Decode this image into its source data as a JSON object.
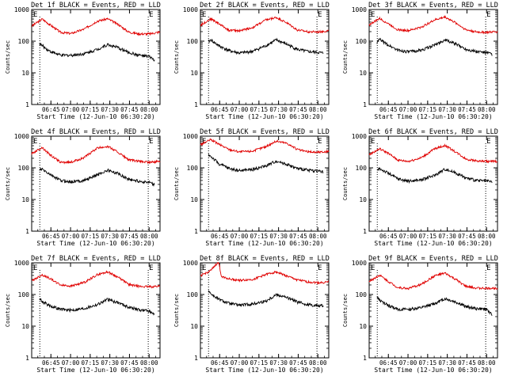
{
  "chart_data": {
    "type": "line",
    "layout": "3x3 grid of panels",
    "y_scale": "log",
    "ylim": [
      1,
      1000
    ],
    "y_ticks": [
      1,
      10,
      100,
      1000
    ],
    "ylabel": "Counts/sec",
    "xlabel": "Start Time (12-Jun-10 06:30:20)",
    "x_range_minutes_from_start": [
      0,
      98
    ],
    "x_ticks": [
      "06:45",
      "07:00",
      "07:15",
      "07:30",
      "07:45",
      "08:00"
    ],
    "x_tick_minutes": [
      14.67,
      29.67,
      44.67,
      59.67,
      74.67,
      89.67
    ],
    "vlines_minutes": [
      6.2,
      89.0
    ],
    "corner_markers": [
      "E",
      "E"
    ],
    "colors": {
      "events": "#000000",
      "lld": "#e00000"
    },
    "panels": [
      {
        "title": "Det 1f BLACK = Events, RED = LLD",
        "series": [
          {
            "name": "LLD",
            "x": [
              0,
              8,
              14,
              22,
              30,
              40,
              50,
              58,
              66,
              74,
              82,
              90,
              98
            ],
            "values": [
              300,
              500,
              330,
              190,
              175,
              240,
              430,
              510,
              340,
              195,
              170,
              170,
              195
            ]
          },
          {
            "name": "Events",
            "x": [
              6,
              8,
              14,
              22,
              30,
              40,
              50,
              58,
              66,
              74,
              82,
              90,
              94
            ],
            "values": [
              85,
              72,
              48,
              36,
              36,
              40,
              55,
              78,
              62,
              44,
              36,
              32,
              25
            ]
          }
        ]
      },
      {
        "title": "Det 2f BLACK = Events, RED = LLD",
        "series": [
          {
            "name": "LLD",
            "x": [
              0,
              8,
              14,
              22,
              30,
              40,
              50,
              58,
              66,
              74,
              82,
              90,
              98
            ],
            "values": [
              320,
              510,
              360,
              220,
              215,
              270,
              470,
              560,
              380,
              225,
              200,
              195,
              215
            ]
          },
          {
            "name": "Events",
            "x": [
              6,
              8,
              14,
              22,
              30,
              40,
              50,
              58,
              66,
              74,
              82,
              90,
              94
            ],
            "values": [
              95,
              110,
              72,
              50,
              42,
              48,
              72,
              110,
              80,
              55,
              47,
              44,
              42
            ]
          }
        ]
      },
      {
        "title": "Det 3f BLACK = Events, RED = LLD",
        "series": [
          {
            "name": "LLD",
            "x": [
              0,
              8,
              14,
              22,
              30,
              40,
              50,
              58,
              66,
              74,
              82,
              90,
              98
            ],
            "values": [
              330,
              520,
              370,
              230,
              215,
              280,
              470,
              580,
              380,
              230,
              195,
              190,
              200
            ]
          },
          {
            "name": "Events",
            "x": [
              6,
              8,
              14,
              22,
              30,
              40,
              50,
              58,
              66,
              74,
              82,
              90,
              94
            ],
            "values": [
              90,
              115,
              78,
              52,
              46,
              52,
              76,
              110,
              82,
              56,
              47,
              44,
              38
            ]
          }
        ]
      },
      {
        "title": "Det 4f BLACK = Events, RED = LLD",
        "series": [
          {
            "name": "LLD",
            "x": [
              0,
              8,
              14,
              22,
              30,
              40,
              50,
              58,
              66,
              74,
              82,
              90,
              98
            ],
            "values": [
              280,
              440,
              260,
              150,
              150,
              210,
              420,
              480,
              310,
              180,
              160,
              150,
              160
            ]
          },
          {
            "name": "Events",
            "x": [
              6,
              8,
              14,
              22,
              30,
              40,
              50,
              58,
              66,
              74,
              82,
              90,
              94
            ],
            "values": [
              85,
              90,
              62,
              40,
              36,
              40,
              60,
              84,
              66,
              44,
              38,
              34,
              28
            ]
          }
        ]
      },
      {
        "title": "Det 5f BLACK = Events, RED = LLD",
        "series": [
          {
            "name": "LLD",
            "x": [
              0,
              8,
              14,
              22,
              30,
              40,
              50,
              58,
              66,
              74,
              82,
              90,
              98
            ],
            "values": [
              540,
              780,
              560,
              380,
              320,
              340,
              470,
              700,
              600,
              380,
              320,
              310,
              330
            ]
          },
          {
            "name": "Events",
            "x": [
              6,
              8,
              14,
              22,
              30,
              40,
              50,
              58,
              66,
              74,
              82,
              90,
              94
            ],
            "values": [
              260,
              230,
              135,
              95,
              82,
              90,
              115,
              165,
              130,
              95,
              85,
              80,
              72
            ]
          }
        ]
      },
      {
        "title": "Det 6f BLACK = Events, RED = LLD",
        "series": [
          {
            "name": "LLD",
            "x": [
              0,
              8,
              14,
              22,
              30,
              40,
              50,
              58,
              66,
              74,
              82,
              90,
              98
            ],
            "values": [
              260,
              400,
              300,
              175,
              160,
              210,
              400,
              510,
              320,
              190,
              165,
              160,
              160
            ]
          },
          {
            "name": "Events",
            "x": [
              6,
              8,
              14,
              22,
              30,
              40,
              50,
              58,
              66,
              74,
              82,
              90,
              94
            ],
            "values": [
              80,
              95,
              70,
              45,
              38,
              42,
              58,
              92,
              70,
              48,
              40,
              38,
              36
            ]
          }
        ]
      },
      {
        "title": "Det 7f BLACK = Events, RED = LLD",
        "series": [
          {
            "name": "LLD",
            "x": [
              0,
              8,
              14,
              22,
              30,
              40,
              50,
              58,
              66,
              74,
              82,
              90,
              98
            ],
            "values": [
              270,
              420,
              320,
              200,
              185,
              240,
              420,
              520,
              350,
              210,
              180,
              175,
              185
            ]
          },
          {
            "name": "Events",
            "x": [
              6,
              8,
              14,
              22,
              30,
              40,
              50,
              58,
              66,
              74,
              82,
              90,
              94
            ],
            "values": [
              75,
              60,
              44,
              34,
              32,
              36,
              48,
              70,
              56,
              40,
              33,
              30,
              22
            ]
          }
        ]
      },
      {
        "title": "Det 8f BLACK = Events, RED = LLD",
        "series": [
          {
            "name": "LLD",
            "x": [
              0,
              8,
              12,
              14,
              16,
              22,
              30,
              40,
              50,
              58,
              66,
              74,
              82,
              90,
              98
            ],
            "values": [
              390,
              570,
              900,
              1000,
              380,
              310,
              280,
              300,
              430,
              520,
              380,
              290,
              250,
              235,
              250
            ]
          },
          {
            "name": "Events",
            "x": [
              6,
              8,
              14,
              22,
              30,
              40,
              50,
              58,
              66,
              74,
              82,
              90,
              94
            ],
            "values": [
              140,
              105,
              70,
              52,
              46,
              50,
              62,
              100,
              80,
              58,
              48,
              45,
              44
            ]
          }
        ]
      },
      {
        "title": "Det 9f BLACK = Events, RED = LLD",
        "series": [
          {
            "name": "LLD",
            "x": [
              0,
              8,
              14,
              22,
              30,
              40,
              50,
              58,
              66,
              74,
              82,
              90,
              98
            ],
            "values": [
              260,
              410,
              270,
              165,
              155,
              210,
              390,
              470,
              300,
              180,
              160,
              155,
              160
            ]
          },
          {
            "name": "Events",
            "x": [
              6,
              8,
              14,
              22,
              30,
              40,
              50,
              58,
              66,
              74,
              82,
              90,
              94
            ],
            "values": [
              85,
              65,
              46,
              34,
              34,
              38,
              52,
              74,
              58,
              42,
              36,
              34,
              22
            ]
          }
        ]
      }
    ]
  }
}
